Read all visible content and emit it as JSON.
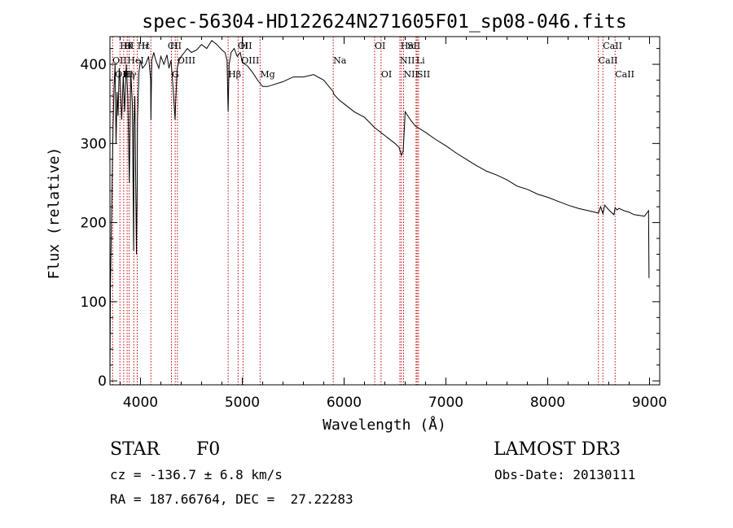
{
  "chart_data": {
    "type": "line",
    "title": "spec-56304-HD122624N271605F01_sp08-046.fits",
    "xlabel": "Wavelength (Å)",
    "ylabel": "Flux (relative)",
    "xlim": [
      3700,
      9100
    ],
    "ylim": [
      -5,
      435
    ],
    "xticks": [
      4000,
      5000,
      6000,
      7000,
      8000,
      9000
    ],
    "yticks": [
      0,
      100,
      200,
      300,
      400
    ],
    "grid": false,
    "series": [
      {
        "name": "flux",
        "x": [
          3700,
          3705,
          3720,
          3730,
          3740,
          3750,
          3760,
          3770,
          3780,
          3790,
          3800,
          3815,
          3830,
          3845,
          3860,
          3875,
          3890,
          3905,
          3920,
          3933,
          3935,
          3945,
          3960,
          3968,
          3970,
          3985,
          4000,
          4020,
          4050,
          4080,
          4100,
          4102,
          4110,
          4130,
          4150,
          4180,
          4200,
          4230,
          4260,
          4280,
          4300,
          4320,
          4340,
          4345,
          4360,
          4380,
          4400,
          4430,
          4460,
          4500,
          4550,
          4600,
          4650,
          4700,
          4750,
          4800,
          4830,
          4850,
          4861,
          4870,
          4890,
          4920,
          4950,
          4980,
          5000,
          5050,
          5100,
          5150,
          5200,
          5250,
          5300,
          5400,
          5500,
          5600,
          5700,
          5800,
          5850,
          5890,
          5900,
          5950,
          6000,
          6100,
          6200,
          6300,
          6400,
          6500,
          6540,
          6563,
          6580,
          6600,
          6650,
          6700,
          6800,
          6900,
          7000,
          7100,
          7200,
          7300,
          7400,
          7500,
          7600,
          7700,
          7800,
          7900,
          8000,
          8100,
          8200,
          8300,
          8400,
          8498,
          8520,
          8542,
          8560,
          8600,
          8650,
          8662,
          8680,
          8700,
          8750,
          8800,
          8850,
          8900,
          8950,
          8990,
          8995
        ],
        "values": [
          0,
          120,
          240,
          320,
          370,
          400,
          300,
          365,
          335,
          395,
          380,
          330,
          385,
          340,
          400,
          360,
          250,
          390,
          350,
          165,
          320,
          360,
          160,
          250,
          330,
          390,
          405,
          395,
          400,
          410,
          380,
          330,
          405,
          415,
          405,
          395,
          410,
          400,
          412,
          395,
          405,
          370,
          330,
          350,
          395,
          405,
          410,
          415,
          420,
          415,
          418,
          425,
          420,
          430,
          425,
          418,
          415,
          405,
          340,
          400,
          415,
          420,
          410,
          415,
          402,
          398,
          390,
          380,
          372,
          372,
          374,
          378,
          384,
          384,
          387,
          380,
          372,
          366,
          362,
          355,
          350,
          340,
          333,
          320,
          310,
          300,
          295,
          285,
          290,
          340,
          330,
          322,
          314,
          305,
          297,
          288,
          280,
          272,
          265,
          260,
          254,
          246,
          242,
          236,
          232,
          227,
          222,
          218,
          215,
          212,
          220,
          211,
          222,
          216,
          210,
          219,
          216,
          218,
          215,
          213,
          210,
          209,
          208,
          215,
          130
        ]
      }
    ],
    "lines": [
      {
        "label": "Hθ",
        "wl": 3798,
        "row": 0
      },
      {
        "label": "H",
        "wl": 3835,
        "row": 0
      },
      {
        "label": "K",
        "wl": 3868,
        "row": 0
      },
      {
        "label": "Hε",
        "wl": 3970,
        "row": 0
      },
      {
        "label": "H",
        "wl": 4010,
        "row": 0
      },
      {
        "label": "CII",
        "wl": 4267,
        "row": 0
      },
      {
        "label": "H",
        "wl": 4290,
        "row": 0
      },
      {
        "label": "OII",
        "wl": 4955,
        "row": 0
      },
      {
        "label": "H",
        "wl": 4980,
        "row": 0
      },
      {
        "label": "OI",
        "wl": 6300,
        "row": 0
      },
      {
        "label": "Hα",
        "wl": 6555,
        "row": 0
      },
      {
        "label": "SII",
        "wl": 6620,
        "row": 0
      },
      {
        "label": "CaII",
        "wl": 8542,
        "row": 0
      },
      {
        "label": "OII",
        "wl": 3725,
        "row": 1
      },
      {
        "label": "HeI",
        "wl": 3870,
        "row": 1
      },
      {
        "label": "OIII",
        "wl": 4363,
        "row": 1
      },
      {
        "label": "OIII",
        "wl": 4990,
        "row": 1
      },
      {
        "label": "Na",
        "wl": 5893,
        "row": 1
      },
      {
        "label": "NII",
        "wl": 6548,
        "row": 1
      },
      {
        "label": "Li",
        "wl": 6707,
        "row": 1
      },
      {
        "label": "CaII",
        "wl": 8498,
        "row": 1
      },
      {
        "label": "OIII",
        "wl": 3750,
        "row": 2
      },
      {
        "label": "Hγ",
        "wl": 3830,
        "row": 2
      },
      {
        "label": "G",
        "wl": 4308,
        "row": 2
      },
      {
        "label": "Hβ",
        "wl": 4861,
        "row": 2
      },
      {
        "label": "Mg",
        "wl": 5175,
        "row": 2
      },
      {
        "label": "OI",
        "wl": 6363,
        "row": 2
      },
      {
        "label": "NII",
        "wl": 6584,
        "row": 2
      },
      {
        "label": "SII",
        "wl": 6716,
        "row": 2
      },
      {
        "label": "CaII",
        "wl": 8662,
        "row": 2
      }
    ],
    "line_positions": [
      3727,
      3798,
      3835,
      3869,
      3889,
      3934,
      3968,
      4102,
      4304,
      4341,
      4363,
      4861,
      4959,
      5007,
      5175,
      5893,
      6300,
      6363,
      6548,
      6563,
      6584,
      6707,
      6717,
      6731,
      8498,
      8542,
      8662
    ],
    "line_color": "#c00000"
  },
  "info": {
    "class_label": "STAR",
    "subclass": "F0",
    "survey": "LAMOST DR3",
    "cz": "cz = -136.7 ± 6.8 km/s",
    "obs_date": "Obs-Date: 20130111",
    "coords": "RA = 187.66764, DEC =  27.22283"
  }
}
